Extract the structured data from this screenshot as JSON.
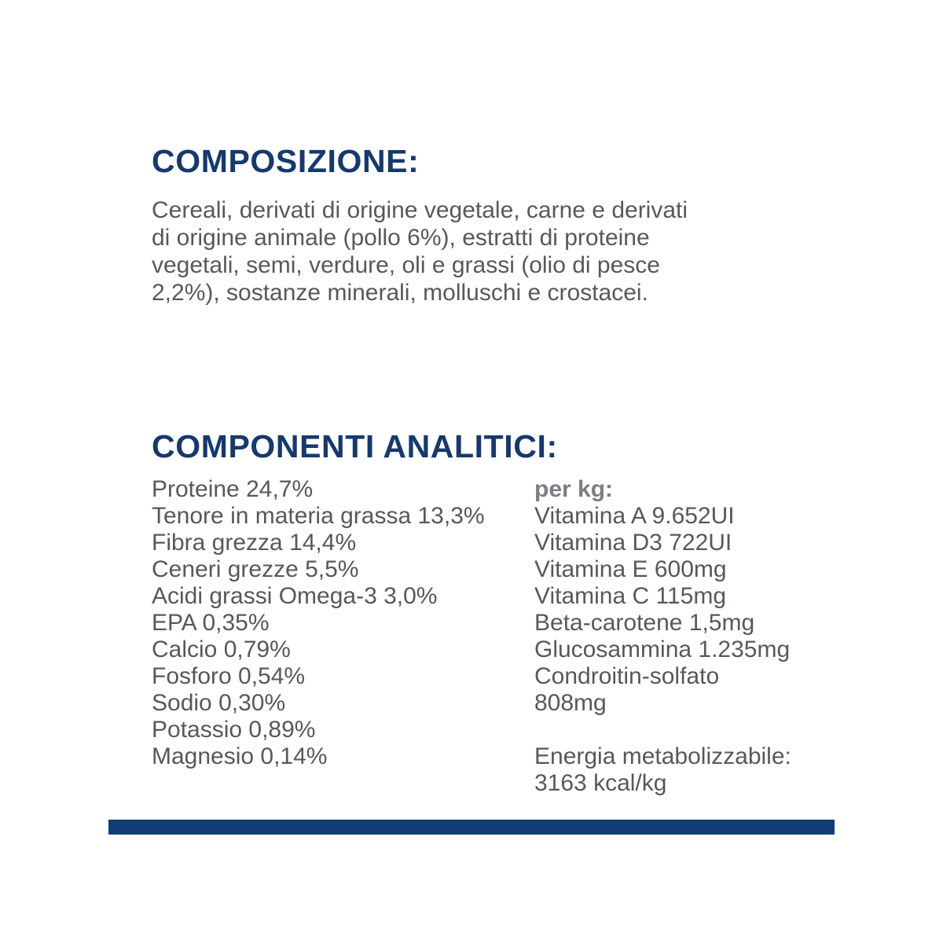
{
  "colors": {
    "heading_navy": "#17396b",
    "bar_navy": "#113d73",
    "body_gray": "#57585c",
    "per_kg_gray": "#7d7e82"
  },
  "composition": {
    "heading": "COMPOSIZIONE:",
    "body": "Cereali, derivati di origine vegetale, carne e derivati\ndi origine animale (pollo 6%), estratti di proteine\nvegetali, semi, verdure, oli e grassi (olio di pesce\n2,2%), sostanze minerali, molluschi e crostacei."
  },
  "analytics": {
    "heading": "COMPONENTI ANALITICI:",
    "left_items": [
      "Proteine 24,7%",
      "Tenore in materia grassa 13,3%",
      "Fibra grezza 14,4%",
      "Ceneri grezze 5,5%",
      "Acidi grassi Omega-3 3,0%",
      "EPA 0,35%",
      "Calcio 0,79%",
      "Fosforo 0,54%",
      "Sodio 0,30%",
      "Potassio 0,89%",
      "Magnesio 0,14%"
    ],
    "per_kg_label": "per kg:",
    "per_kg_items": [
      "Vitamina A 9.652UI",
      "Vitamina D3 722UI",
      "Vitamina E 600mg",
      "Vitamina C 115mg",
      "Beta-carotene 1,5mg",
      "Glucosammina 1.235mg",
      "Condroitin-solfato\n808mg"
    ],
    "energy": "Energia metabolizzabile:\n3163 kcal/kg"
  }
}
